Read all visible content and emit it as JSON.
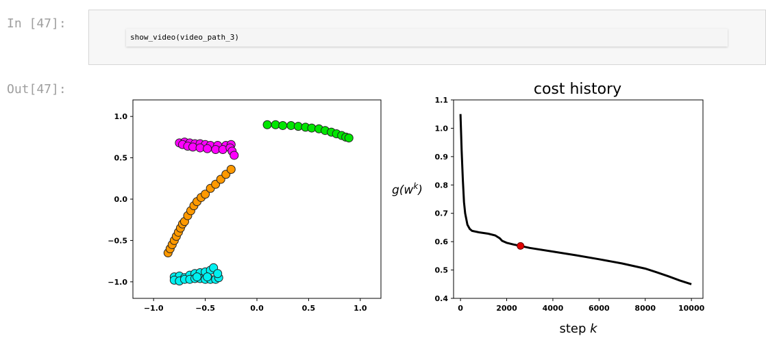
{
  "cell": {
    "in_prompt": "In [47]:",
    "out_prompt": "Out[47]:",
    "code": "show_video(video_path_3)"
  },
  "chart_data": [
    {
      "type": "scatter",
      "title": "",
      "xlabel": "",
      "ylabel": "",
      "xlim": [
        -1.2,
        1.2
      ],
      "ylim": [
        -1.2,
        1.2
      ],
      "xticks": [
        -1.0,
        -0.5,
        0.0,
        0.5,
        1.0
      ],
      "yticks": [
        -1.0,
        -0.5,
        0.0,
        0.5,
        1.0
      ],
      "xtick_labels": [
        "−1.0",
        "−0.5",
        "0.0",
        "0.5",
        "1.0"
      ],
      "ytick_labels": [
        "−1.0",
        "−0.5",
        "0.0",
        "0.5",
        "1.0"
      ],
      "series": [
        {
          "color": "#00e600",
          "points": [
            [
              0.1,
              0.9
            ],
            [
              0.18,
              0.9
            ],
            [
              0.25,
              0.89
            ],
            [
              0.33,
              0.89
            ],
            [
              0.4,
              0.88
            ],
            [
              0.47,
              0.87
            ],
            [
              0.53,
              0.86
            ],
            [
              0.6,
              0.85
            ],
            [
              0.66,
              0.83
            ],
            [
              0.72,
              0.81
            ],
            [
              0.77,
              0.79
            ],
            [
              0.82,
              0.77
            ],
            [
              0.86,
              0.75
            ],
            [
              0.89,
              0.74
            ]
          ]
        },
        {
          "color": "#ff00ff",
          "points": [
            [
              -0.75,
              0.68
            ],
            [
              -0.7,
              0.69
            ],
            [
              -0.65,
              0.68
            ],
            [
              -0.6,
              0.67
            ],
            [
              -0.55,
              0.67
            ],
            [
              -0.5,
              0.66
            ],
            [
              -0.45,
              0.65
            ],
            [
              -0.38,
              0.65
            ],
            [
              -0.3,
              0.65
            ],
            [
              -0.25,
              0.66
            ],
            [
              -0.72,
              0.66
            ],
            [
              -0.67,
              0.64
            ],
            [
              -0.62,
              0.63
            ],
            [
              -0.55,
              0.62
            ],
            [
              -0.48,
              0.61
            ],
            [
              -0.4,
              0.6
            ],
            [
              -0.33,
              0.6
            ],
            [
              -0.26,
              0.62
            ],
            [
              -0.24,
              0.58
            ],
            [
              -0.22,
              0.53
            ]
          ]
        },
        {
          "color": "#ff9900",
          "points": [
            [
              -0.86,
              -0.65
            ],
            [
              -0.84,
              -0.6
            ],
            [
              -0.82,
              -0.55
            ],
            [
              -0.8,
              -0.5
            ],
            [
              -0.78,
              -0.45
            ],
            [
              -0.76,
              -0.4
            ],
            [
              -0.74,
              -0.35
            ],
            [
              -0.72,
              -0.3
            ],
            [
              -0.7,
              -0.27
            ],
            [
              -0.67,
              -0.2
            ],
            [
              -0.64,
              -0.14
            ],
            [
              -0.61,
              -0.08
            ],
            [
              -0.58,
              -0.03
            ],
            [
              -0.54,
              0.02
            ],
            [
              -0.5,
              0.06
            ],
            [
              -0.45,
              0.13
            ],
            [
              -0.4,
              0.18
            ],
            [
              -0.35,
              0.24
            ],
            [
              -0.3,
              0.3
            ],
            [
              -0.25,
              0.36
            ]
          ]
        },
        {
          "color": "#00f0f0",
          "points": [
            [
              -0.8,
              -0.94
            ],
            [
              -0.75,
              -0.93
            ],
            [
              -0.7,
              -0.95
            ],
            [
              -0.65,
              -0.92
            ],
            [
              -0.6,
              -0.9
            ],
            [
              -0.55,
              -0.89
            ],
            [
              -0.5,
              -0.88
            ],
            [
              -0.45,
              -0.86
            ],
            [
              -0.42,
              -0.83
            ],
            [
              -0.8,
              -0.98
            ],
            [
              -0.75,
              -0.99
            ],
            [
              -0.7,
              -0.97
            ],
            [
              -0.65,
              -0.97
            ],
            [
              -0.6,
              -0.96
            ],
            [
              -0.55,
              -0.96
            ],
            [
              -0.5,
              -0.97
            ],
            [
              -0.45,
              -0.97
            ],
            [
              -0.4,
              -0.97
            ],
            [
              -0.37,
              -0.95
            ],
            [
              -0.38,
              -0.9
            ],
            [
              -0.48,
              -0.94
            ],
            [
              -0.58,
              -0.94
            ]
          ]
        }
      ]
    },
    {
      "type": "line",
      "title": "cost history",
      "xlabel": "step k",
      "ylabel": "g(w^k)",
      "xlim": [
        -300,
        10500
      ],
      "ylim": [
        0.4,
        1.1
      ],
      "xticks": [
        0,
        2000,
        4000,
        6000,
        8000,
        10000
      ],
      "yticks": [
        0.4,
        0.5,
        0.6,
        0.7,
        0.8,
        0.9,
        1.0,
        1.1
      ],
      "xtick_labels": [
        "0",
        "2000",
        "4000",
        "6000",
        "8000",
        "10000"
      ],
      "ytick_labels": [
        "0.4",
        "0.5",
        "0.6",
        "0.7",
        "0.8",
        "0.9",
        "1.0",
        "1.1"
      ],
      "x": [
        0,
        50,
        100,
        150,
        200,
        300,
        400,
        500,
        800,
        1200,
        1500,
        1700,
        1800,
        2000,
        2300,
        2600,
        3000,
        4000,
        5000,
        6000,
        7000,
        8000,
        8500,
        9000,
        9500,
        10000
      ],
      "y": [
        1.05,
        0.92,
        0.82,
        0.74,
        0.7,
        0.66,
        0.645,
        0.638,
        0.633,
        0.628,
        0.622,
        0.612,
        0.603,
        0.596,
        0.59,
        0.585,
        0.578,
        0.565,
        0.552,
        0.538,
        0.523,
        0.505,
        0.492,
        0.478,
        0.463,
        0.45
      ],
      "line_color": "#000000",
      "marker": {
        "x": 2600,
        "y": 0.585,
        "color": "#e00000"
      }
    }
  ]
}
